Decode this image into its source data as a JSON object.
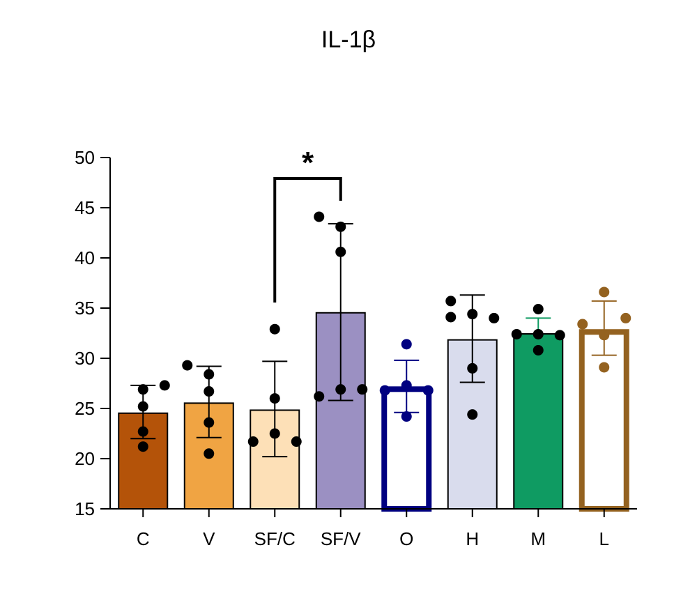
{
  "chart_data": {
    "type": "bar",
    "title": "IL-1β",
    "xlabel": "",
    "ylabel": "",
    "ylim": [
      15,
      50
    ],
    "yticks": [
      15,
      20,
      25,
      30,
      35,
      40,
      45,
      50
    ],
    "categories": [
      "C",
      "V",
      "SF/C",
      "SF/V",
      "O",
      "H",
      "M",
      "L"
    ],
    "values": [
      24.6,
      25.6,
      24.9,
      34.6,
      27.2,
      31.9,
      32.5,
      32.9
    ],
    "error": [
      [
        22.0,
        27.3
      ],
      [
        22.1,
        29.2
      ],
      [
        20.2,
        29.7
      ],
      [
        25.8,
        43.4
      ],
      [
        24.6,
        29.8
      ],
      [
        27.6,
        36.3
      ],
      [
        31.0,
        34.0
      ],
      [
        30.3,
        35.7
      ]
    ],
    "points": [
      [
        26.9,
        27.3,
        25.2,
        22.7,
        21.2
      ],
      [
        29.3,
        28.4,
        26.7,
        23.6,
        20.5
      ],
      [
        32.9,
        26.0,
        22.5,
        21.7,
        21.7
      ],
      [
        44.1,
        43.1,
        40.6,
        26.9,
        26.2,
        26.9
      ],
      [
        31.4,
        27.3,
        26.8,
        26.8,
        24.2
      ],
      [
        35.7,
        34.4,
        34.1,
        34.0,
        29.0,
        24.4
      ],
      [
        34.9,
        32.4,
        32.4,
        32.3,
        30.8
      ],
      [
        36.6,
        33.4,
        34.0,
        32.3,
        29.1
      ]
    ],
    "colors": {
      "fill": [
        "#b45309",
        "#f0a443",
        "#fde0b7",
        "#9b90c2",
        "#ffffff",
        "#d9dced",
        "#0f9b62",
        "#ffffff"
      ],
      "stroke": [
        "#000000",
        "#000000",
        "#000000",
        "#000000",
        "#000080",
        "#000000",
        "#000000",
        "#946220"
      ],
      "points": [
        "#000000",
        "#000000",
        "#000000",
        "#000000",
        "#000080",
        "#000000",
        "#000000",
        "#946220"
      ],
      "errorbar": [
        "#000000",
        "#000000",
        "#000000",
        "#000000",
        "#000080",
        "#000000",
        "#0f9b62",
        "#946220"
      ]
    },
    "significance": {
      "label": "*",
      "from": "SF/C",
      "to": "SF/V"
    }
  }
}
